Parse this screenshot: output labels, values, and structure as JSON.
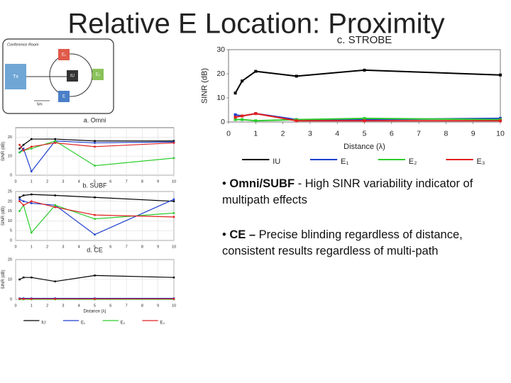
{
  "title": "Relative E Location: Proximity",
  "bullets": [
    {
      "bold": "Omni/SUBF",
      "text": " - High SINR variability indicator of multipath effects"
    },
    {
      "bold": "CE –",
      "text": "  Precise blinding regardless of distance, consistent results regardless of multi-path"
    }
  ],
  "diagram": {
    "labels": [
      "Conference Room",
      "Tx",
      "E₁",
      "E₂",
      "IU",
      "E",
      "5m"
    ]
  },
  "chart_data": [
    {
      "type": "line",
      "title": "c. STROBE",
      "x_label": "Distance (λ)",
      "y_label": "SINR (dB)",
      "x": [
        0.25,
        0.5,
        1,
        2.5,
        5,
        10
      ],
      "xlim": [
        0,
        10
      ],
      "xticks": [
        0,
        1,
        2,
        3,
        4,
        5,
        6,
        7,
        8,
        9,
        10
      ],
      "ylim": [
        0,
        30
      ],
      "yticks": [
        0,
        10,
        20,
        30
      ],
      "grid": false,
      "legend": "bottom",
      "series": [
        {
          "name": "IU",
          "color": "#000000",
          "values": [
            12,
            17,
            21,
            19,
            21.5,
            19.5
          ]
        },
        {
          "name": "E₁",
          "color": "#1f3fcf",
          "values": [
            3,
            2.5,
            3.5,
            1,
            1,
            1.5
          ]
        },
        {
          "name": "E₂",
          "color": "#2ecc2e",
          "values": [
            1,
            1,
            0.5,
            1,
            1.5,
            1
          ]
        },
        {
          "name": "E₃",
          "color": "#e02020",
          "values": [
            2,
            2.5,
            3.5,
            0.5,
            0.5,
            0.5
          ]
        }
      ]
    },
    {
      "type": "line",
      "title": "a. Omni",
      "y_label": "SINR (dB)",
      "x": [
        0.25,
        0.5,
        1,
        2.5,
        5,
        10
      ],
      "xlim": [
        0,
        10
      ],
      "xticks": [
        0,
        1,
        2,
        3,
        4,
        5,
        6,
        7,
        8,
        9,
        10
      ],
      "ylim": [
        0,
        25
      ],
      "yticks": [
        0,
        10,
        20
      ],
      "grid": true,
      "series": [
        {
          "color": "#000000",
          "values": [
            14,
            16,
            19,
            19,
            18,
            18
          ]
        },
        {
          "color": "#1f3fcf",
          "values": [
            12,
            14,
            2,
            18,
            17,
            17.5
          ]
        },
        {
          "color": "#2ecc2e",
          "values": [
            12,
            13,
            14,
            18,
            5,
            9
          ]
        },
        {
          "color": "#e02020",
          "values": [
            16,
            13,
            15,
            17,
            15,
            17
          ]
        }
      ]
    },
    {
      "type": "line",
      "title": "b. SUBF",
      "y_label": "SINR (dB)",
      "x": [
        0.25,
        0.5,
        1,
        2.5,
        5,
        10
      ],
      "xlim": [
        0,
        10
      ],
      "xticks": [
        0,
        1,
        2,
        3,
        4,
        5,
        6,
        7,
        8,
        9,
        10
      ],
      "ylim": [
        0,
        25
      ],
      "yticks": [
        0,
        5,
        10,
        15,
        20,
        25
      ],
      "grid": true,
      "series": [
        {
          "color": "#000000",
          "values": [
            22,
            23,
            23.5,
            23,
            22,
            20
          ]
        },
        {
          "color": "#1f3fcf",
          "values": [
            21,
            20,
            19,
            18,
            3,
            21
          ]
        },
        {
          "color": "#2ecc2e",
          "values": [
            15,
            18,
            4,
            18,
            11,
            14
          ]
        },
        {
          "color": "#e02020",
          "values": [
            20,
            18,
            20,
            17,
            13,
            12
          ]
        }
      ]
    },
    {
      "type": "line",
      "title": "d. CE",
      "x_label": "Distance (λ)",
      "y_label": "SINR (dB)",
      "x": [
        0.25,
        0.5,
        1,
        2.5,
        5,
        10
      ],
      "xlim": [
        0,
        10
      ],
      "xticks": [
        0,
        1,
        2,
        3,
        4,
        5,
        6,
        7,
        8,
        9,
        10
      ],
      "ylim": [
        0,
        20
      ],
      "yticks": [
        0,
        10,
        20
      ],
      "grid": true,
      "legend": "bottom",
      "series": [
        {
          "name": "IU",
          "color": "#000000",
          "values": [
            10,
            11,
            11,
            9,
            12,
            11
          ]
        },
        {
          "name": "E₁",
          "color": "#1f3fcf",
          "values": [
            0.5,
            0.5,
            0.5,
            0.5,
            0.5,
            0.5
          ]
        },
        {
          "name": "E₂",
          "color": "#2ecc2e",
          "values": [
            0,
            0,
            0,
            0,
            0,
            0
          ]
        },
        {
          "name": "E₃",
          "color": "#e02020",
          "values": [
            0.2,
            0.2,
            0.2,
            0.2,
            0.2,
            0.2
          ]
        }
      ]
    }
  ]
}
